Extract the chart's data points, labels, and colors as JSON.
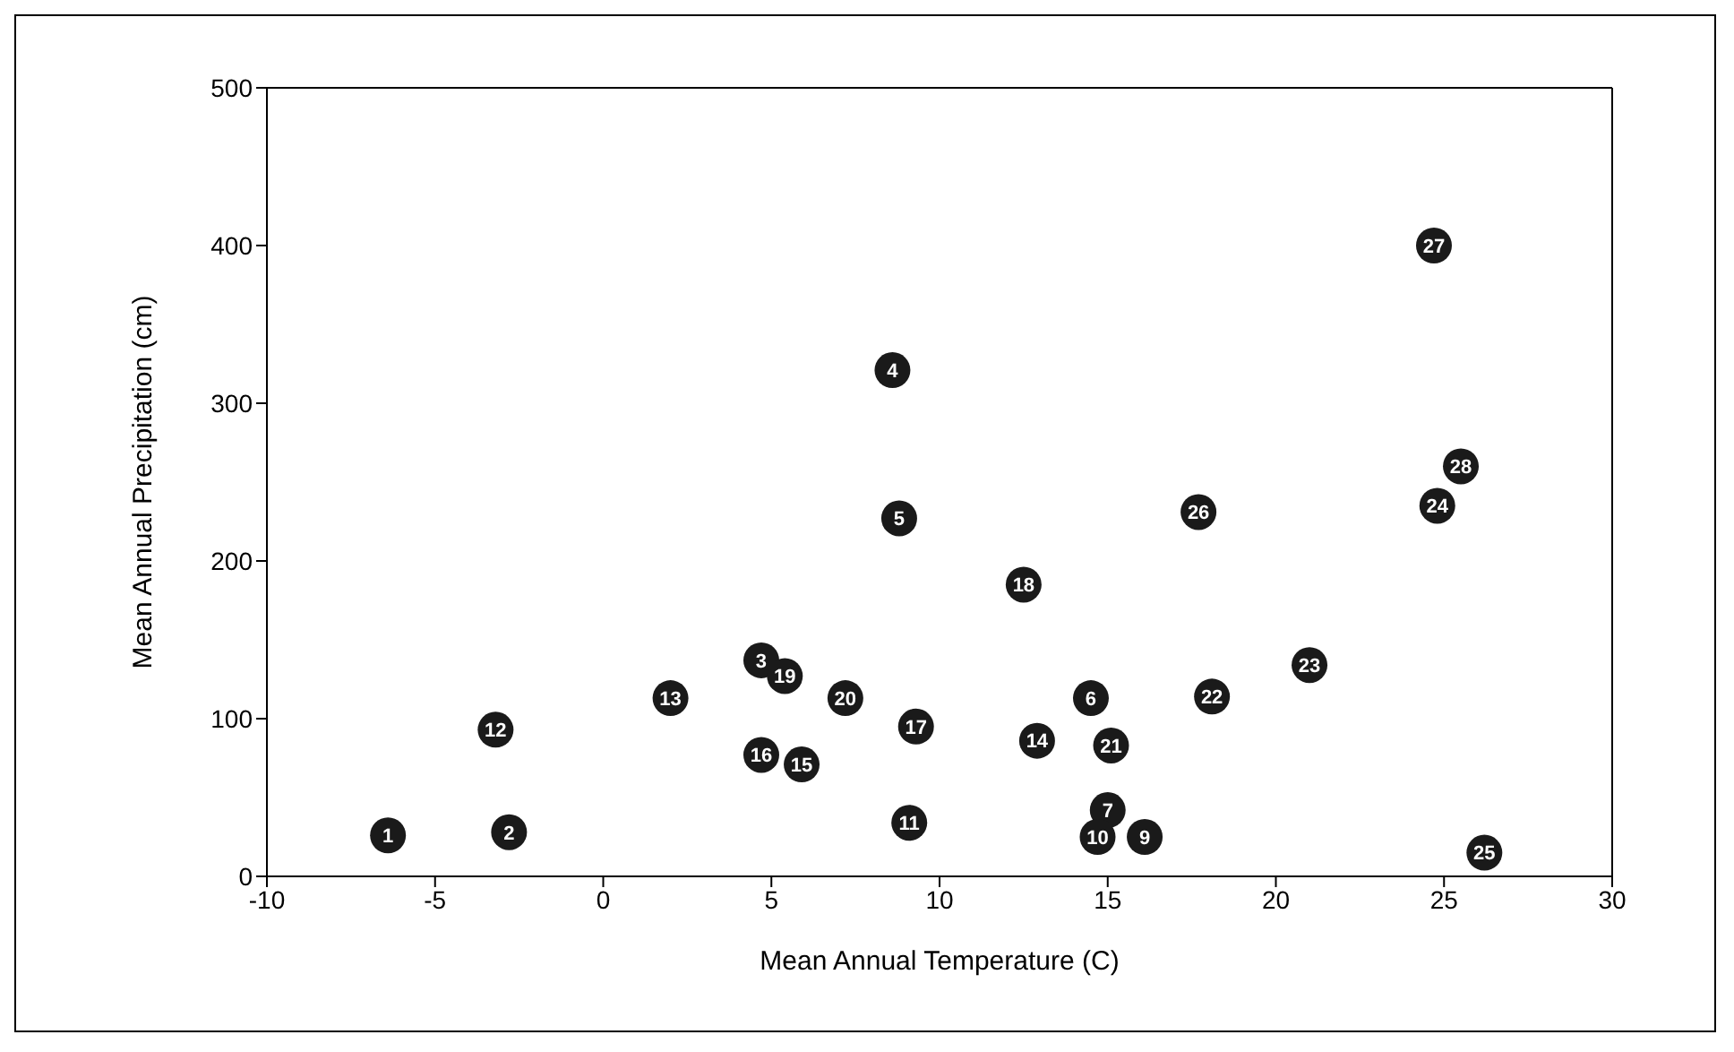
{
  "chart_data": {
    "type": "scatter",
    "xlabel": "Mean Annual Temperature (C)",
    "ylabel": "Mean Annual Precipitation (cm)",
    "x": [
      -6.4,
      -2.8,
      4.7,
      8.6,
      8.8,
      14.5,
      15.0,
      16.1,
      14.7,
      9.1,
      -3.2,
      2.0,
      12.9,
      5.9,
      4.7,
      9.3,
      12.5,
      5.4,
      7.2,
      15.1,
      18.1,
      21.0,
      24.8,
      26.2,
      17.7,
      24.7,
      25.5
    ],
    "series": [
      {
        "color": "#1a1a1a",
        "values": [
          26,
          28,
          137,
          321,
          227,
          113,
          42,
          25,
          25,
          34,
          93,
          113,
          86,
          71,
          77,
          95,
          185,
          127,
          113,
          83,
          114,
          134,
          235,
          15,
          231,
          400,
          260
        ]
      }
    ],
    "annotations": [
      {
        "text": "1",
        "x": -6.4,
        "y": 26
      },
      {
        "text": "2",
        "x": -2.8,
        "y": 28
      },
      {
        "text": "3",
        "x": 4.7,
        "y": 137
      },
      {
        "text": "4",
        "x": 8.6,
        "y": 321
      },
      {
        "text": "5",
        "x": 8.8,
        "y": 227
      },
      {
        "text": "6",
        "x": 14.5,
        "y": 113
      },
      {
        "text": "7",
        "x": 15.0,
        "y": 42
      },
      {
        "text": "9",
        "x": 16.1,
        "y": 25
      },
      {
        "text": "10",
        "x": 14.7,
        "y": 25
      },
      {
        "text": "11",
        "x": 9.1,
        "y": 34
      },
      {
        "text": "12",
        "x": -3.2,
        "y": 93
      },
      {
        "text": "13",
        "x": 2.0,
        "y": 113
      },
      {
        "text": "14",
        "x": 12.9,
        "y": 86
      },
      {
        "text": "15",
        "x": 5.9,
        "y": 71
      },
      {
        "text": "16",
        "x": 4.7,
        "y": 77
      },
      {
        "text": "17",
        "x": 9.3,
        "y": 95
      },
      {
        "text": "18",
        "x": 12.5,
        "y": 185
      },
      {
        "text": "19",
        "x": 5.4,
        "y": 127
      },
      {
        "text": "20",
        "x": 7.2,
        "y": 113
      },
      {
        "text": "21",
        "x": 15.1,
        "y": 83
      },
      {
        "text": "22",
        "x": 18.1,
        "y": 114
      },
      {
        "text": "23",
        "x": 21.0,
        "y": 134
      },
      {
        "text": "24",
        "x": 24.8,
        "y": 235
      },
      {
        "text": "25",
        "x": 26.2,
        "y": 15
      },
      {
        "text": "26",
        "x": 17.7,
        "y": 231
      },
      {
        "text": "27",
        "x": 24.7,
        "y": 400
      },
      {
        "text": "28",
        "x": 25.5,
        "y": 260
      }
    ],
    "xlim": [
      -10,
      30
    ],
    "xticks": [
      -10,
      -5,
      0,
      5,
      10,
      15,
      20,
      25,
      30
    ],
    "ylim": [
      0,
      500
    ],
    "yticks": [
      0,
      100,
      200,
      300,
      400,
      500
    ],
    "marker": "circle",
    "legend": false
  }
}
